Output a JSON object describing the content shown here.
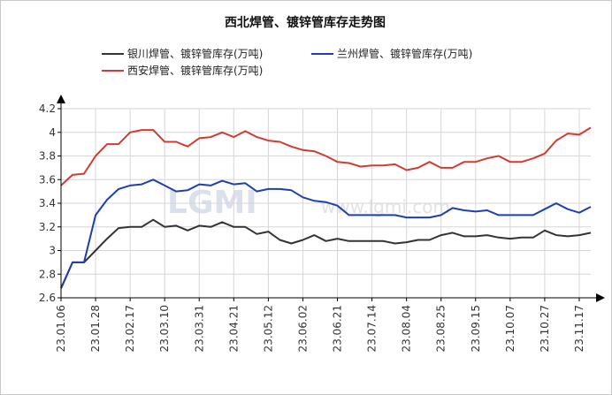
{
  "chart_data": {
    "type": "line",
    "title": "西北焊管、镀锌管库存走势图",
    "watermark_logo": "LGMI",
    "watermark_url": "www.lgmi.com",
    "xlabel": "",
    "ylabel": "",
    "ylim": [
      2.6,
      4.2
    ],
    "yticks": [
      2.6,
      2.8,
      3,
      3.2,
      3.4,
      3.6,
      3.8,
      4,
      4.2
    ],
    "ytick_labels": [
      "2.6",
      "2.8",
      "3",
      "3.2",
      "3.4",
      "3.6",
      "3.8",
      "4",
      "4.2"
    ],
    "grid": true,
    "legend_position": "top",
    "x": [
      "23.01.06",
      "23.01.13",
      "23.01.20",
      "23.01.28",
      "23.02.03",
      "23.02.10",
      "23.02.17",
      "23.02.24",
      "23.03.03",
      "23.03.10",
      "23.03.17",
      "23.03.24",
      "23.03.31",
      "23.04.07",
      "23.04.14",
      "23.04.21",
      "23.04.28",
      "23.05.05",
      "23.05.12",
      "23.05.19",
      "23.05.26",
      "23.06.02",
      "23.06.09",
      "23.06.16",
      "23.06.21",
      "23.06.30",
      "23.07.07",
      "23.07.14",
      "23.07.21",
      "23.07.28",
      "23.08.04",
      "23.08.11",
      "23.08.18",
      "23.08.25",
      "23.09.01",
      "23.09.08",
      "23.09.15",
      "23.09.22",
      "23.09.28",
      "23.10.07",
      "23.10.13",
      "23.10.20",
      "23.10.27",
      "23.11.03",
      "23.11.10",
      "23.11.17",
      "23.11.24"
    ],
    "xtick_labels": [
      "23.01.06",
      "23.01.28",
      "23.02.17",
      "23.03.10",
      "23.03.31",
      "23.04.21",
      "23.05.12",
      "23.06.02",
      "23.06.21",
      "23.07.14",
      "23.08.04",
      "23.08.25",
      "23.09.15",
      "23.10.07",
      "23.10.27",
      "23.11.17"
    ],
    "series": [
      {
        "name": "银川焊管、镀锌管库存(万吨)",
        "color": "#333333",
        "values": [
          2.68,
          2.9,
          2.9,
          3.0,
          3.1,
          3.19,
          3.2,
          3.2,
          3.26,
          3.2,
          3.21,
          3.17,
          3.21,
          3.2,
          3.24,
          3.2,
          3.2,
          3.14,
          3.16,
          3.09,
          3.06,
          3.09,
          3.13,
          3.08,
          3.1,
          3.08,
          3.08,
          3.08,
          3.08,
          3.06,
          3.07,
          3.09,
          3.09,
          3.13,
          3.15,
          3.12,
          3.12,
          3.13,
          3.11,
          3.1,
          3.11,
          3.11,
          3.17,
          3.13,
          3.12,
          3.13,
          3.15
        ]
      },
      {
        "name": "兰州焊管、镀锌管库存(万吨)",
        "color": "#1f3fb0",
        "values": [
          2.68,
          2.9,
          2.9,
          3.3,
          3.43,
          3.52,
          3.55,
          3.56,
          3.6,
          3.55,
          3.5,
          3.51,
          3.56,
          3.55,
          3.59,
          3.56,
          3.57,
          3.5,
          3.52,
          3.52,
          3.51,
          3.45,
          3.42,
          3.41,
          3.38,
          3.3,
          3.3,
          3.3,
          3.3,
          3.3,
          3.28,
          3.28,
          3.28,
          3.3,
          3.36,
          3.34,
          3.33,
          3.34,
          3.3,
          3.3,
          3.3,
          3.3,
          3.35,
          3.4,
          3.35,
          3.32,
          3.37
        ]
      },
      {
        "name": "西安焊管、镀锌管库存(万吨)",
        "color": "#d23b32",
        "values": [
          3.55,
          3.64,
          3.65,
          3.8,
          3.9,
          3.9,
          4.0,
          4.02,
          4.02,
          3.92,
          3.92,
          3.88,
          3.95,
          3.96,
          4.0,
          3.96,
          4.01,
          3.96,
          3.93,
          3.92,
          3.88,
          3.85,
          3.84,
          3.8,
          3.75,
          3.74,
          3.71,
          3.72,
          3.72,
          3.73,
          3.68,
          3.7,
          3.75,
          3.7,
          3.7,
          3.75,
          3.75,
          3.78,
          3.8,
          3.75,
          3.75,
          3.78,
          3.82,
          3.93,
          3.99,
          3.98,
          4.04
        ]
      }
    ]
  }
}
